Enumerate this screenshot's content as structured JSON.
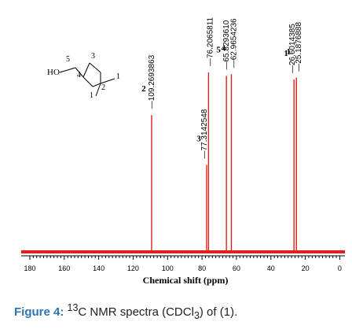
{
  "chart_data": {
    "type": "spectrum",
    "xlabel": "Chemical shift (ppm)",
    "xlim": [
      185,
      -3
    ],
    "x_ticks": [
      180,
      160,
      140,
      120,
      100,
      80,
      60,
      40,
      20,
      0
    ],
    "peaks": [
      {
        "shift": 109.2693863,
        "label": "109.2693863",
        "height": 0.76,
        "assign": "2"
      },
      {
        "shift": 77.3142548,
        "label": "77.3142548",
        "height": 0.48,
        "assign": "3"
      },
      {
        "shift": 76.2065811,
        "label": "76.2065811",
        "height": 1.0,
        "assign": ""
      },
      {
        "shift": 65.829361,
        "label": "65.8293610",
        "height": 0.98,
        "assign": "5"
      },
      {
        "shift": 62.9654236,
        "label": "62.9654236",
        "height": 0.99,
        "assign": "4"
      },
      {
        "shift": 26.6014385,
        "label": "26.6014385",
        "height": 0.96,
        "assign": "1"
      },
      {
        "shift": 25.1876888,
        "label": "25.1876888",
        "height": 0.97,
        "assign": "1"
      }
    ]
  },
  "structure": {
    "atoms": {
      "ho": "HO",
      "n5": "5",
      "n3": "3",
      "n4": "4",
      "n2": "2",
      "n1a": "1",
      "n1b": "1"
    }
  },
  "caption": {
    "label": "Figure 4:",
    "text_pre": " ",
    "sup": "13",
    "text_mid": "C NMR spectra (CDCl",
    "sub": "3",
    "text_end": ") of (1)."
  },
  "colors": {
    "spectrum": "#e0201a",
    "caption_label": "#2e75b6"
  }
}
